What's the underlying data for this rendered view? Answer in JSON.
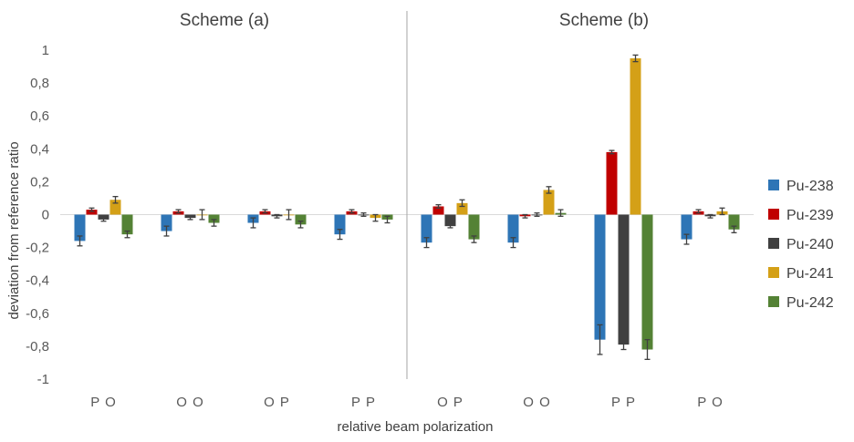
{
  "chart_data": {
    "type": "bar",
    "title": "",
    "xlabel": "relative beam polarization",
    "ylabel": "deviation from reference ratio",
    "ylim": [
      -1,
      1
    ],
    "yticks": [
      "1",
      "0,8",
      "0,6",
      "0,4",
      "0,2",
      "0",
      "-0,2",
      "-0,4",
      "-0,6",
      "-0,8",
      "-1"
    ],
    "ytick_values": [
      1,
      0.8,
      0.6,
      0.4,
      0.2,
      0,
      -0.2,
      -0.4,
      -0.6,
      -0.8,
      -1
    ],
    "grid": false,
    "legend_position": "right",
    "panels": [
      "Scheme (a)",
      "Scheme (b)"
    ],
    "categories": [
      "P O",
      "O O",
      "O P",
      "P P",
      "O P",
      "O O",
      "P P",
      "P O"
    ],
    "series": [
      {
        "name": "Pu-238",
        "color": "#2E75B6",
        "values": [
          -0.16,
          -0.1,
          -0.05,
          -0.12,
          -0.17,
          -0.17,
          -0.76,
          -0.15
        ],
        "errors": [
          0.03,
          0.03,
          0.03,
          0.03,
          0.03,
          0.03,
          0.09,
          0.03
        ]
      },
      {
        "name": "Pu-239",
        "color": "#C00000",
        "values": [
          0.03,
          0.02,
          0.02,
          0.02,
          0.05,
          -0.01,
          0.38,
          0.02
        ],
        "errors": [
          0.01,
          0.01,
          0.01,
          0.01,
          0.01,
          0.01,
          0.01,
          0.01
        ]
      },
      {
        "name": "Pu-240",
        "color": "#404040",
        "values": [
          -0.03,
          -0.02,
          -0.01,
          0.0,
          -0.07,
          0.0,
          -0.79,
          -0.01
        ],
        "errors": [
          0.01,
          0.01,
          0.01,
          0.01,
          0.01,
          0.01,
          0.03,
          0.01
        ]
      },
      {
        "name": "Pu-241",
        "color": "#D4A017",
        "values": [
          0.09,
          0.0,
          0.0,
          -0.02,
          0.07,
          0.15,
          0.95,
          0.02
        ],
        "errors": [
          0.02,
          0.03,
          0.03,
          0.02,
          0.02,
          0.02,
          0.02,
          0.02
        ]
      },
      {
        "name": "Pu-242",
        "color": "#548235",
        "values": [
          -0.12,
          -0.05,
          -0.06,
          -0.03,
          -0.15,
          0.01,
          -0.82,
          -0.09
        ],
        "errors": [
          0.02,
          0.02,
          0.02,
          0.02,
          0.02,
          0.02,
          0.06,
          0.02
        ]
      }
    ]
  }
}
